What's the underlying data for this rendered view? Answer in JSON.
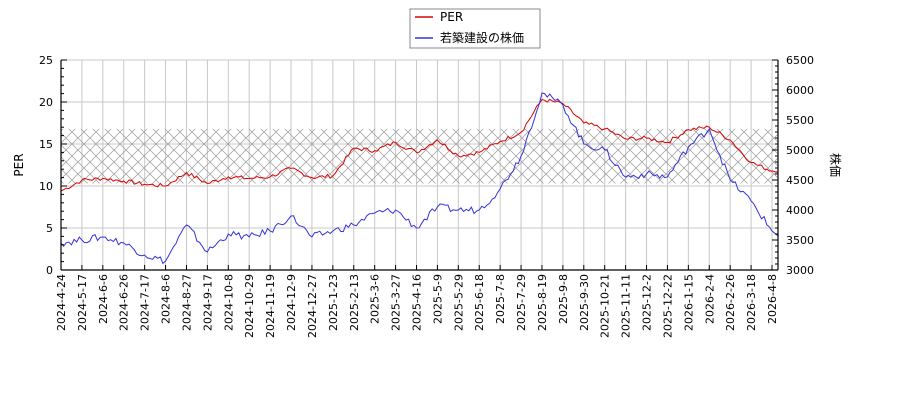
{
  "legend": {
    "items": [
      {
        "label": "PER",
        "color": "#dd0000"
      },
      {
        "label": "若築建設の株価",
        "color": "#3333dd"
      }
    ]
  },
  "axes": {
    "left_title": "PER",
    "right_title": "株価",
    "left_ticks": [
      "0",
      "5",
      "10",
      "15",
      "20",
      "25"
    ],
    "right_ticks": [
      "3000",
      "3500",
      "4000",
      "4500",
      "5000",
      "5500",
      "6000",
      "6500"
    ],
    "x_ticks": [
      "2024-4-24",
      "2024-5-17",
      "2024-6-6",
      "2024-6-26",
      "2024-7-17",
      "2024-8-6",
      "2024-8-27",
      "2024-9-17",
      "2024-10-8",
      "2024-10-29",
      "2024-11-19",
      "2024-12-9",
      "2024-12-27",
      "2025-1-23",
      "2025-2-13",
      "2025-3-6",
      "2025-3-27",
      "2025-4-16",
      "2025-5-9",
      "2025-5-29",
      "2025-6-18",
      "2025-7-8",
      "2025-7-29",
      "2025-8-19",
      "2025-9-8",
      "2025-9-30",
      "2025-10-21",
      "2025-11-11",
      "2025-12-2",
      "2025-12-22",
      "2026-1-15",
      "2026-2-4",
      "2026-2-26",
      "2026-3-18",
      "2026-4-8"
    ]
  },
  "chart_data": {
    "type": "line",
    "title": "",
    "xlabel": "",
    "ylabel": "PER",
    "y2label": "株価",
    "ylim": [
      0,
      25
    ],
    "y2lim": [
      3000,
      6500
    ],
    "grid": true,
    "legend_position": "top-center",
    "band": {
      "label": "PER range band (hatched)",
      "y_from": 10.3,
      "y_to": 16.8
    },
    "categories": [
      "2024-4-24",
      "2024-5-17",
      "2024-6-6",
      "2024-6-26",
      "2024-7-17",
      "2024-8-6",
      "2024-8-27",
      "2024-9-17",
      "2024-10-8",
      "2024-10-29",
      "2024-11-19",
      "2024-12-9",
      "2024-12-27",
      "2025-1-23",
      "2025-2-13",
      "2025-3-6",
      "2025-3-27",
      "2025-4-16",
      "2025-5-9",
      "2025-5-29",
      "2025-6-18",
      "2025-7-8",
      "2025-7-29",
      "2025-8-19",
      "2025-9-8",
      "2025-9-30",
      "2025-10-21",
      "2025-11-11",
      "2025-12-2",
      "2025-12-22",
      "2026-1-15",
      "2026-2-4",
      "2026-2-26",
      "2026-3-18",
      "2026-4-8"
    ],
    "series": [
      {
        "name": "PER",
        "axis": "left",
        "color": "#dd0000",
        "values": [
          9.4,
          10.7,
          10.9,
          10.6,
          10.2,
          10.0,
          11.6,
          10.3,
          11.1,
          10.9,
          11.1,
          12.1,
          11.0,
          11.2,
          14.5,
          14.2,
          15.2,
          14.0,
          15.5,
          13.6,
          14.0,
          15.3,
          16.4,
          20.3,
          19.8,
          17.5,
          16.8,
          15.6,
          15.7,
          15.2,
          16.7,
          17.0,
          15.5,
          12.8,
          11.8
        ]
      },
      {
        "name": "若築建設の株価",
        "axis": "right",
        "color": "#3333dd",
        "values": [
          3450,
          3500,
          3550,
          3450,
          3250,
          3150,
          3750,
          3300,
          3600,
          3550,
          3650,
          3900,
          3550,
          3650,
          3750,
          3950,
          4000,
          3700,
          4050,
          4000,
          4000,
          4350,
          4900,
          5950,
          5750,
          5100,
          5000,
          4550,
          4600,
          4550,
          5050,
          5350,
          4500,
          4150,
          3650
        ]
      }
    ]
  }
}
